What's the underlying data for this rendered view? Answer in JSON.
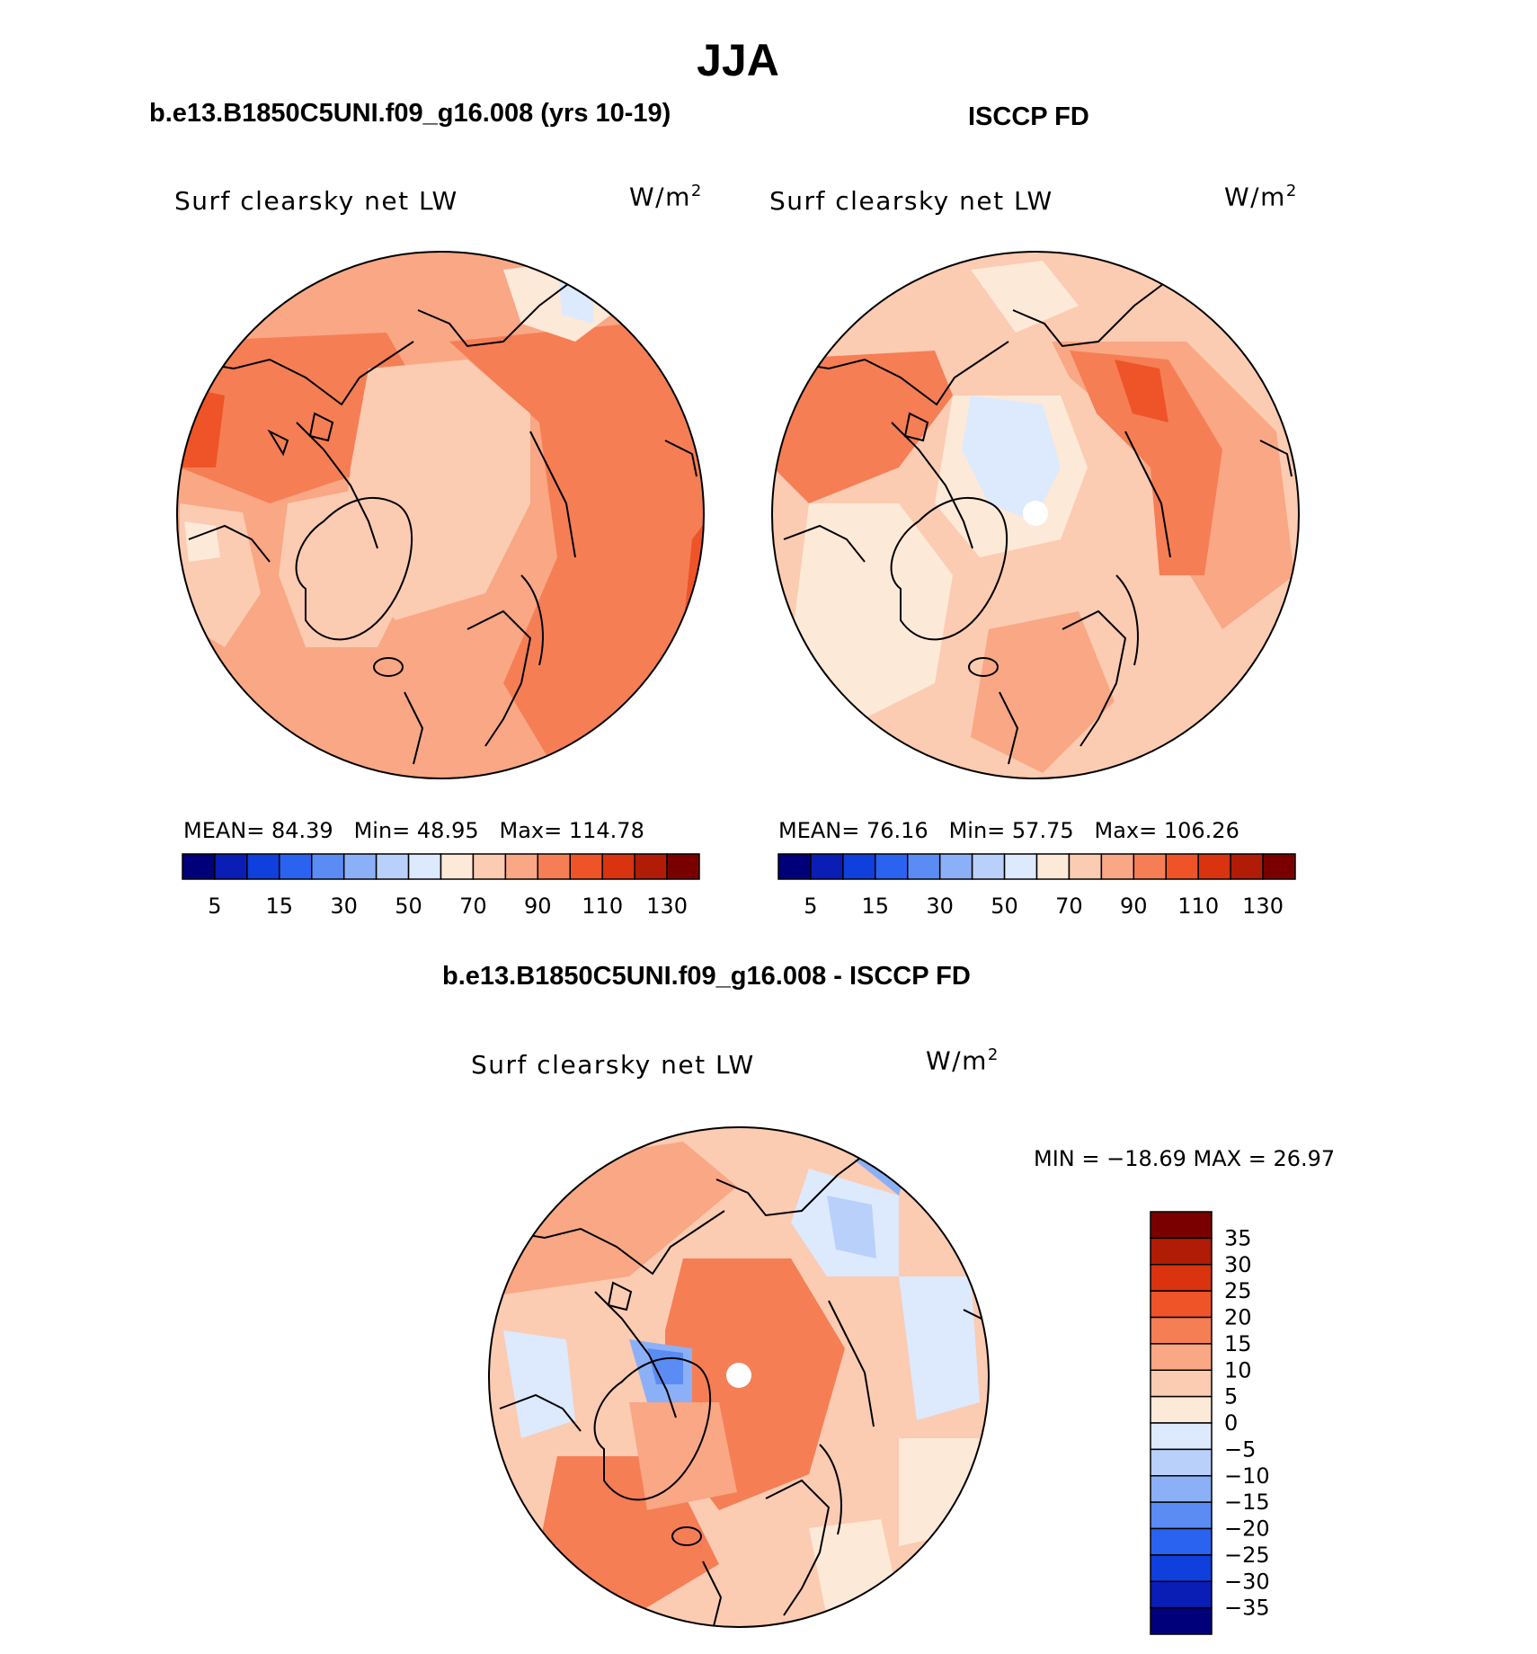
{
  "title": "JJA",
  "panels": [
    {
      "title": "b.e13.B1850C5UNI.f09_g16.008 (yrs 10-19)",
      "variable": "Surf clearsky net LW",
      "units": "W/m",
      "units_sup": "2",
      "stats": {
        "mean": "MEAN=   84.39",
        "min": "Min=   48.95",
        "max": "Max=  114.78"
      }
    },
    {
      "title": "ISCCP FD",
      "variable": "Surf clearsky net LW",
      "units": "W/m",
      "units_sup": "2",
      "stats": {
        "mean": "MEAN=   76.16",
        "min": "Min=   57.75",
        "max": "Max=  106.26"
      }
    },
    {
      "title": "b.e13.B1850C5UNI.f09_g16.008 - ISCCP FD",
      "variable": "Surf clearsky net LW",
      "units": "W/m",
      "units_sup": "2",
      "stats": {
        "minmax": "MIN  =  −18.69  MAX  =    26.97"
      }
    }
  ],
  "colorbar_abs": {
    "colors": [
      "#00007a",
      "#0a1db5",
      "#0f3fdc",
      "#2a63f0",
      "#5b8cf4",
      "#8cb0f7",
      "#b9d0fa",
      "#dde9fd",
      "#fde9d8",
      "#fbcbb2",
      "#f9a784",
      "#f57e55",
      "#ee5428",
      "#d9330f",
      "#b01c05",
      "#7a0000"
    ],
    "tick_labels": [
      "5",
      "15",
      "30",
      "50",
      "70",
      "90",
      "110",
      "130"
    ]
  },
  "colorbar_diff": {
    "colors_top_to_bottom": [
      "#7a0000",
      "#b01c05",
      "#d9330f",
      "#ee5428",
      "#f57e55",
      "#f9a784",
      "#fbcbb2",
      "#fde9d8",
      "#dde9fd",
      "#b9d0fa",
      "#8cb0f7",
      "#5b8cf4",
      "#2a63f0",
      "#0f3fdc",
      "#0a1db5",
      "#00007a"
    ],
    "tick_labels": [
      "35",
      "30",
      "25",
      "20",
      "15",
      "10",
      "5",
      "0",
      "−5",
      "−10",
      "−15",
      "−20",
      "−25",
      "−30",
      "−35"
    ]
  },
  "colors": {
    "land_outline": "#000000",
    "missing": "#ffffff"
  }
}
